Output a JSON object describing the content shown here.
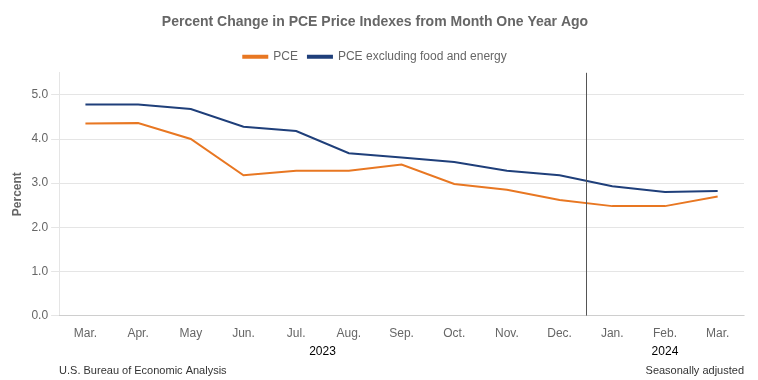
{
  "chart_data": {
    "type": "line",
    "title": "Percent Change in PCE Price Indexes from Month One Year Ago",
    "ylabel": "Percent",
    "categories": [
      "Mar.",
      "Apr.",
      "May",
      "Jun.",
      "Jul.",
      "Aug.",
      "Sep.",
      "Oct.",
      "Nov.",
      "Dec.",
      "Jan.",
      "Feb.",
      "Mar."
    ],
    "series": [
      {
        "name": "PCE",
        "color": "#E87722",
        "values": [
          4.35,
          4.36,
          4.0,
          3.18,
          3.28,
          3.28,
          3.42,
          2.98,
          2.85,
          2.62,
          2.48,
          2.48,
          2.7
        ]
      },
      {
        "name": "PCE excluding food and energy",
        "color": "#1F3F7A",
        "values": [
          4.78,
          4.78,
          4.68,
          4.28,
          4.18,
          3.68,
          3.58,
          3.48,
          3.28,
          3.18,
          2.93,
          2.8,
          2.82
        ]
      }
    ],
    "ylim": [
      0.0,
      5.5
    ],
    "yticks": [
      {
        "value": 0,
        "label": "0.0"
      },
      {
        "value": 1,
        "label": "1.0"
      },
      {
        "value": 2,
        "label": "2.0"
      },
      {
        "value": 3,
        "label": "3.0"
      },
      {
        "value": 4,
        "label": "4.0"
      },
      {
        "value": 5,
        "label": "5.0"
      }
    ],
    "grid": true,
    "legend": "top",
    "annotations": [
      {
        "text": "2023",
        "from": 0,
        "to": 9
      },
      {
        "text": "2024",
        "from": 10,
        "to": 12
      },
      {
        "text": "U.S. Bureau of Economic Analysis",
        "align": "left"
      },
      {
        "text": "Seasonally adjusted",
        "align": "right"
      }
    ]
  }
}
